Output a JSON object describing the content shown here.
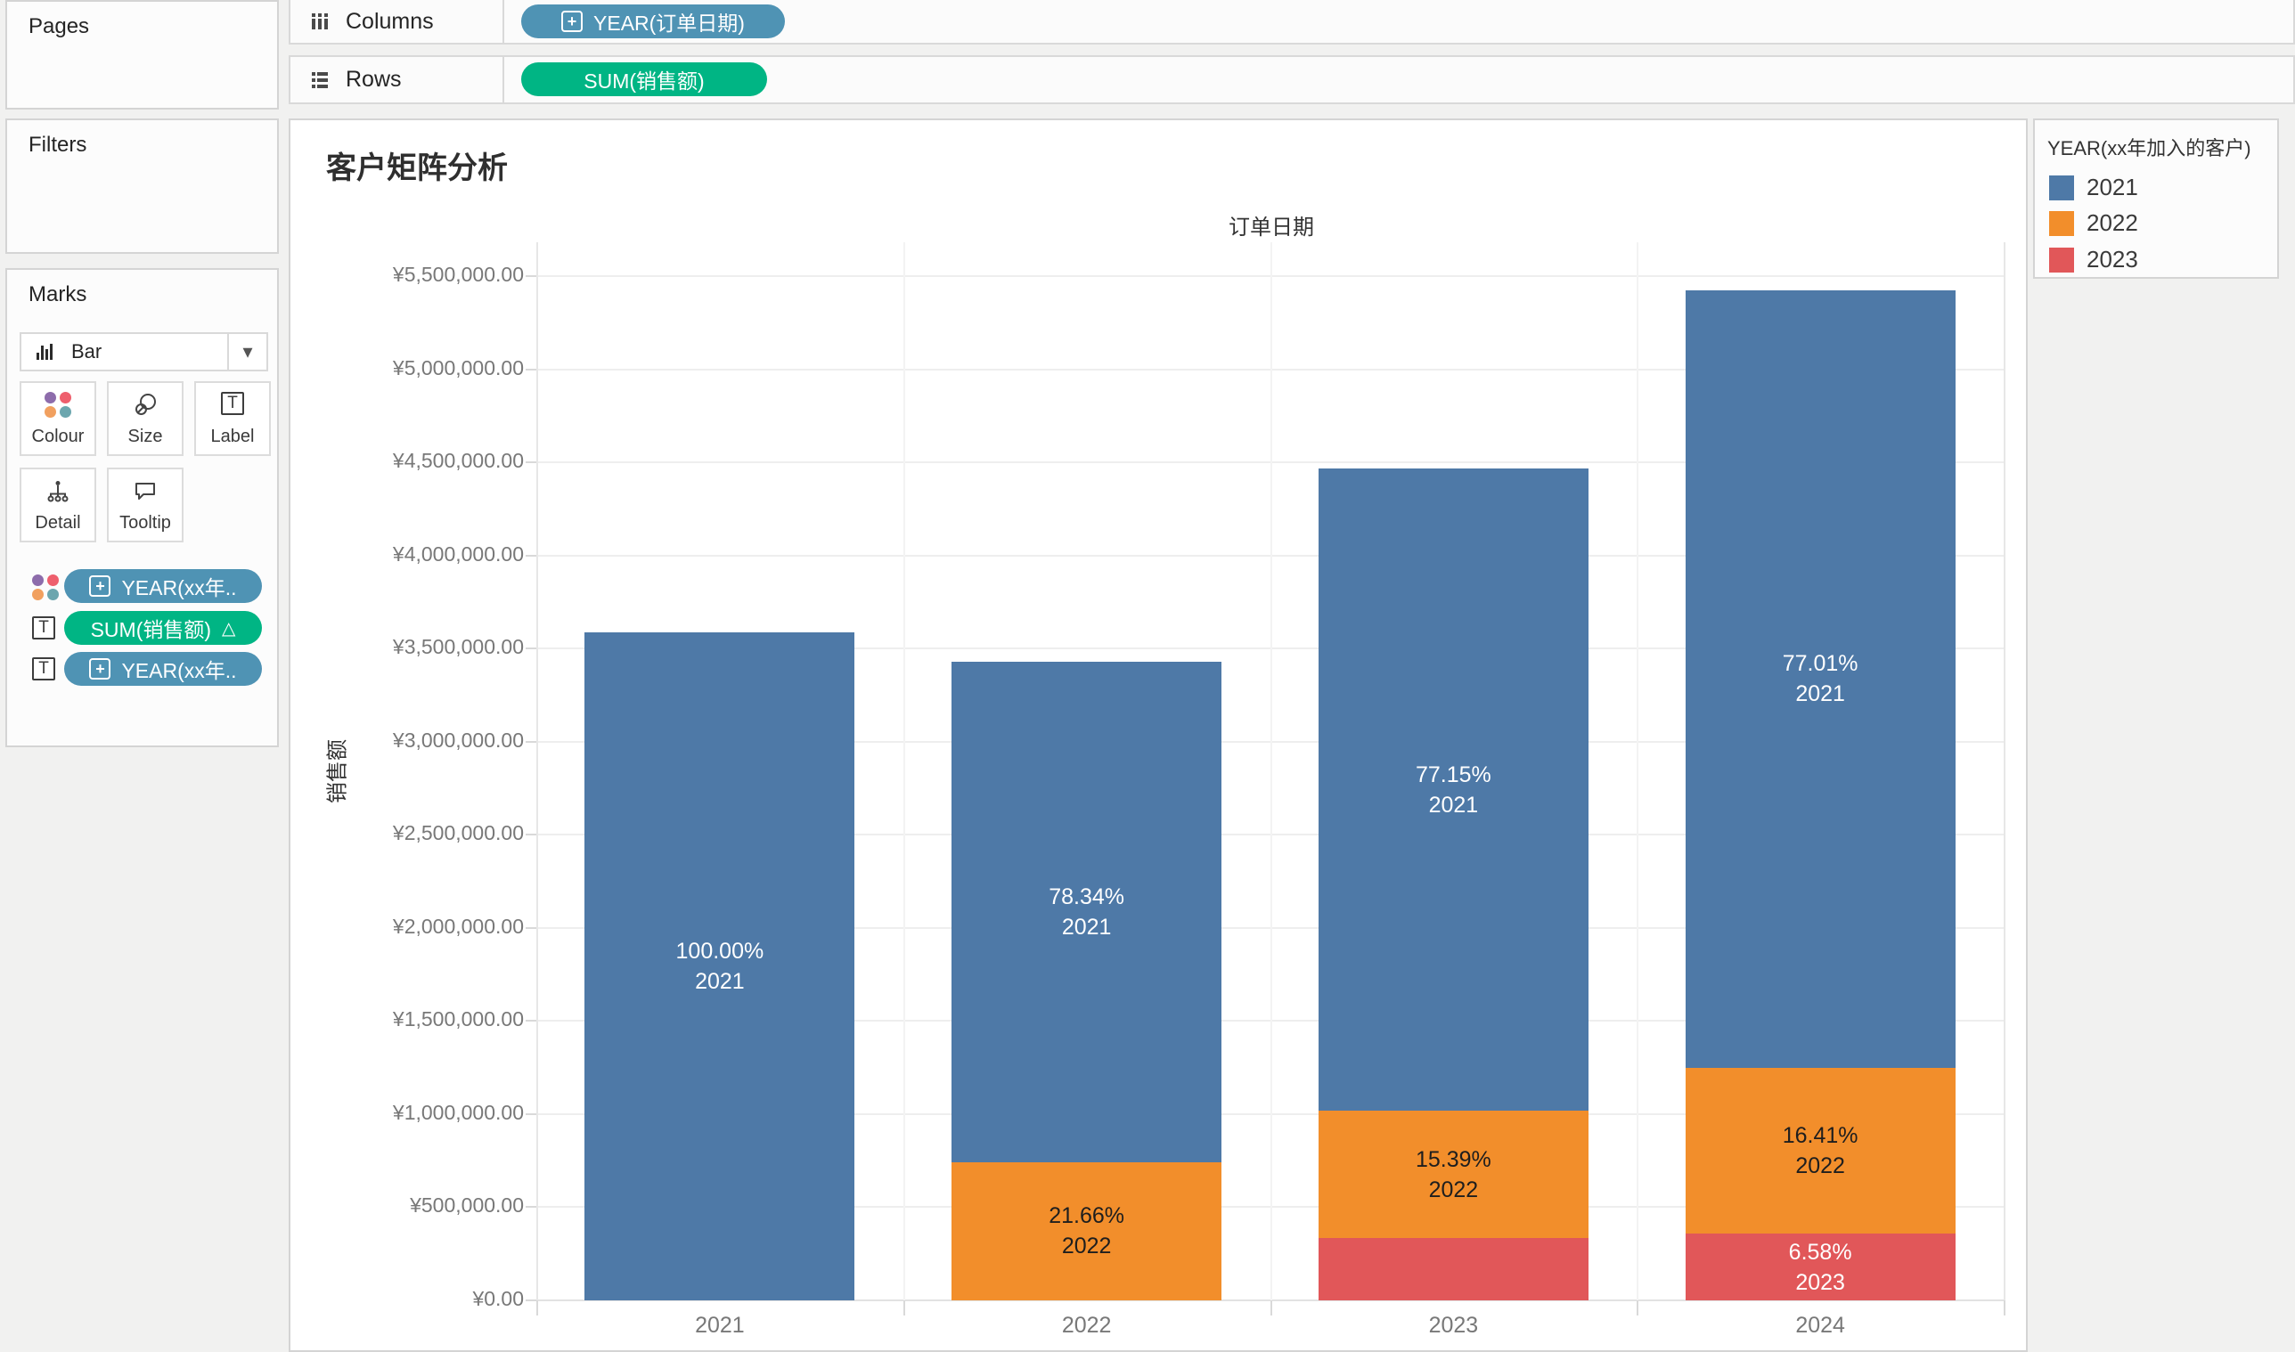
{
  "shelves": {
    "pages_label": "Pages",
    "filters_label": "Filters",
    "columns_label": "Columns",
    "rows_label": "Rows",
    "columns_pill": {
      "text": "YEAR(订单日期)",
      "prefix": "+",
      "color": "#4f93b4"
    },
    "rows_pill": {
      "text": "SUM(销售额)",
      "color": "#00b584"
    }
  },
  "marks_card": {
    "title": "Marks",
    "mark_type": "Bar",
    "buttons": [
      {
        "label": "Colour",
        "icon": "colour-dots-icon"
      },
      {
        "label": "Size",
        "icon": "size-icon"
      },
      {
        "label": "Label",
        "icon": "label-icon"
      },
      {
        "label": "Detail",
        "icon": "detail-icon"
      },
      {
        "label": "Tooltip",
        "icon": "tooltip-icon"
      }
    ],
    "pills": [
      {
        "text": "YEAR(xx年..",
        "prefix": "+",
        "color": "#4f93b4",
        "left_icon": "colour-dots-icon"
      },
      {
        "text": "SUM(销售额)",
        "suffix": "△",
        "color": "#00b584",
        "left_icon": "label-icon"
      },
      {
        "text": "YEAR(xx年..",
        "prefix": "+",
        "color": "#4f93b4",
        "left_icon": "label-icon"
      }
    ],
    "dot_colors": [
      "#8d6cab",
      "#ee5f6d",
      "#f1a05f",
      "#6ca6ae"
    ]
  },
  "legend": {
    "title": "YEAR(xx年加入的客户)",
    "items": [
      {
        "label": "2021",
        "color": "#4e79a7"
      },
      {
        "label": "2022",
        "color": "#f28e2b"
      },
      {
        "label": "2023",
        "color": "#e15759"
      }
    ]
  },
  "chart_data": {
    "type": "bar",
    "stacked": true,
    "title": "客户矩阵分析",
    "x_axis_title": "订单日期",
    "ylabel": "销售额",
    "categories": [
      "2021",
      "2022",
      "2023",
      "2024"
    ],
    "ylim": [
      0,
      5500000
    ],
    "ytick_interval": 500000,
    "grid": true,
    "legend_position": "right",
    "yticks": [
      {
        "value": 0,
        "label": "¥0.00"
      },
      {
        "value": 500000,
        "label": "¥500,000.00"
      },
      {
        "value": 1000000,
        "label": "¥1,000,000.00"
      },
      {
        "value": 1500000,
        "label": "¥1,500,000.00"
      },
      {
        "value": 2000000,
        "label": "¥2,000,000.00"
      },
      {
        "value": 2500000,
        "label": "¥2,500,000.00"
      },
      {
        "value": 3000000,
        "label": "¥3,000,000.00"
      },
      {
        "value": 3500000,
        "label": "¥3,500,000.00"
      },
      {
        "value": 4000000,
        "label": "¥4,000,000.00"
      },
      {
        "value": 4500000,
        "label": "¥4,500,000.00"
      },
      {
        "value": 5000000,
        "label": "¥5,000,000.00"
      },
      {
        "value": 5500000,
        "label": "¥5,500,000.00"
      }
    ],
    "series": [
      {
        "name": "2021",
        "color": "#4e79a7"
      },
      {
        "name": "2022",
        "color": "#f28e2b"
      },
      {
        "name": "2023",
        "color": "#e15759"
      }
    ],
    "bars": [
      {
        "category": "2021",
        "total_estimate": 3585000,
        "segments": [
          {
            "series": "2021",
            "percent": 100.0,
            "label": [
              "100.00%",
              "2021"
            ],
            "label_color": "#ffffff"
          }
        ]
      },
      {
        "category": "2022",
        "total_estimate": 3430000,
        "segments": [
          {
            "series": "2021",
            "percent": 78.34,
            "label": [
              "78.34%",
              "2021"
            ],
            "label_color": "#ffffff"
          },
          {
            "series": "2022",
            "percent": 21.66,
            "label": [
              "21.66%",
              "2022"
            ],
            "label_color": "#1e1e1e"
          }
        ]
      },
      {
        "category": "2023",
        "total_estimate": 4465000,
        "segments": [
          {
            "series": "2021",
            "percent": 77.15,
            "label": [
              "77.15%",
              "2021"
            ],
            "label_color": "#ffffff"
          },
          {
            "series": "2022",
            "percent": 15.39,
            "label": [
              "15.39%",
              "2022"
            ],
            "label_color": "#1e1e1e"
          },
          {
            "series": "2023",
            "percent": 7.46,
            "label": null
          }
        ]
      },
      {
        "category": "2024",
        "total_estimate": 5425000,
        "segments": [
          {
            "series": "2021",
            "percent": 77.01,
            "label": [
              "77.01%",
              "2021"
            ],
            "label_color": "#ffffff"
          },
          {
            "series": "2022",
            "percent": 16.41,
            "label": [
              "16.41%",
              "2022"
            ],
            "label_color": "#1e1e1e"
          },
          {
            "series": "2023",
            "percent": 6.58,
            "label": [
              "6.58%",
              "2023"
            ],
            "label_color": "#ffffff"
          }
        ]
      }
    ]
  }
}
